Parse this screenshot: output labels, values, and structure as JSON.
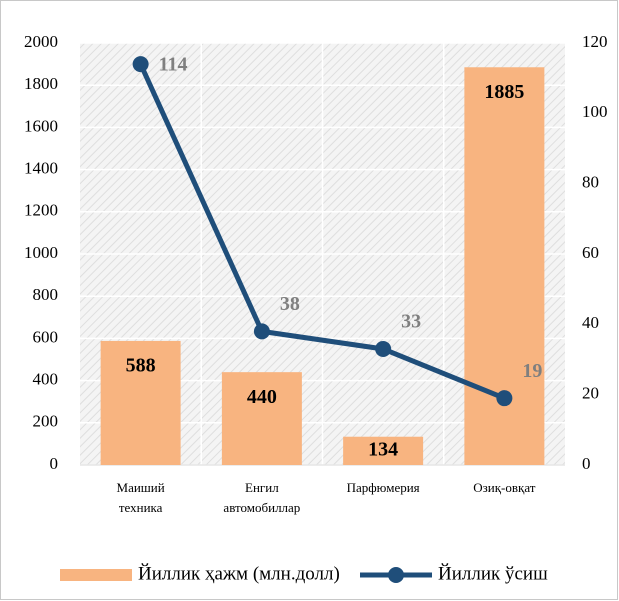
{
  "chart_data": {
    "type": "bar",
    "categories": [
      "Маиший техника",
      "Енгил автомобиллар",
      "Парфюмерия",
      "Озиқ-овқат"
    ],
    "series": [
      {
        "name": "Йиллик ҳажм (млн.долл)",
        "type": "bar",
        "color": "#f8b480",
        "axis": "y",
        "values": [
          588,
          440,
          134,
          1885
        ]
      },
      {
        "name": "Йиллик ўсиш",
        "type": "line",
        "color": "#1f4e7a",
        "axis": "y2",
        "values": [
          114,
          38,
          33,
          19
        ]
      }
    ],
    "ylim": [
      0,
      2000
    ],
    "yticks": [
      0,
      200,
      400,
      600,
      800,
      1000,
      1200,
      1400,
      1600,
      1800,
      2000
    ],
    "y2lim": [
      0,
      120
    ],
    "y2ticks": [
      0,
      20,
      40,
      60,
      80,
      100,
      120
    ],
    "grid": true,
    "legend": "bottom"
  }
}
